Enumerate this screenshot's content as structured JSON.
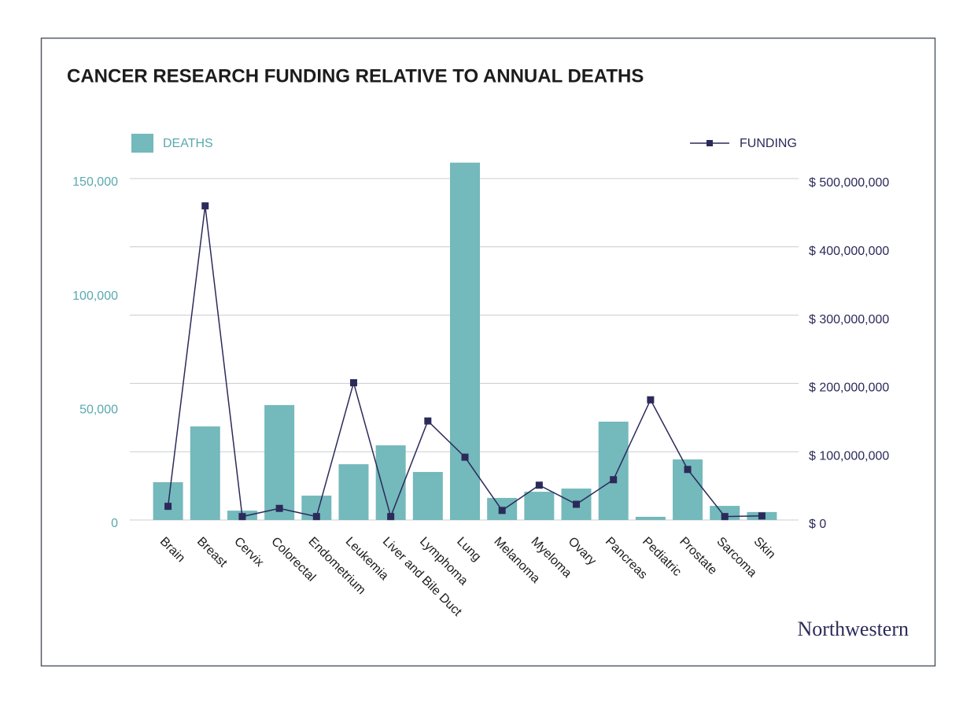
{
  "chart_data": {
    "type": "bar_line",
    "title": "CANCER RESEARCH FUNDING RELATIVE TO ANNUAL DEATHS",
    "categories": [
      "Brain",
      "Breast",
      "Cervix",
      "Colorectal",
      "Endometrium",
      "Leukemia",
      "Liver and Bile Duct",
      "Lymphoma",
      "Lung",
      "Melanoma",
      "Myeloma",
      "Ovary",
      "Pancreas",
      "Pediatric",
      "Prostate",
      "Sarcoma",
      "Skin"
    ],
    "series": [
      {
        "name": "DEATHS",
        "type": "bar",
        "color": "#74b9bb",
        "axis": "y",
        "values": [
          16600,
          41100,
          4100,
          50500,
          10700,
          24500,
          32800,
          21100,
          157000,
          9700,
          12400,
          13800,
          43200,
          1400,
          26600,
          6200,
          3500
        ]
      },
      {
        "name": "FUNDING",
        "type": "line",
        "color": "#2b2a5a",
        "axis": "y2",
        "values": [
          20000000,
          460000000,
          5000000,
          17000000,
          5000000,
          201000000,
          5000000,
          145000000,
          92000000,
          14000000,
          51000000,
          23000000,
          59000000,
          176000000,
          74000000,
          5000000,
          6000000
        ]
      }
    ],
    "ylim": [
      0,
      150000
    ],
    "yticks": [
      0,
      {
        "value": 50000,
        "label": "50,000"
      },
      {
        "value": 100000,
        "label": "100,000"
      },
      {
        "value": 150000,
        "label": "150,000"
      }
    ],
    "y2lim": [
      0,
      500000000
    ],
    "y2ticks": [
      {
        "value": 0,
        "label": "$ 0"
      },
      {
        "value": 100000000,
        "label": "$ 100,000,000"
      },
      {
        "value": 200000000,
        "label": "$ 200,000,000"
      },
      {
        "value": 300000000,
        "label": "$ 300,000,000"
      },
      {
        "value": 400000000,
        "label": "$ 400,000,000"
      },
      {
        "value": 500000000,
        "label": "$ 500,000,000"
      }
    ],
    "grid": true,
    "brand": "Northwestern"
  }
}
